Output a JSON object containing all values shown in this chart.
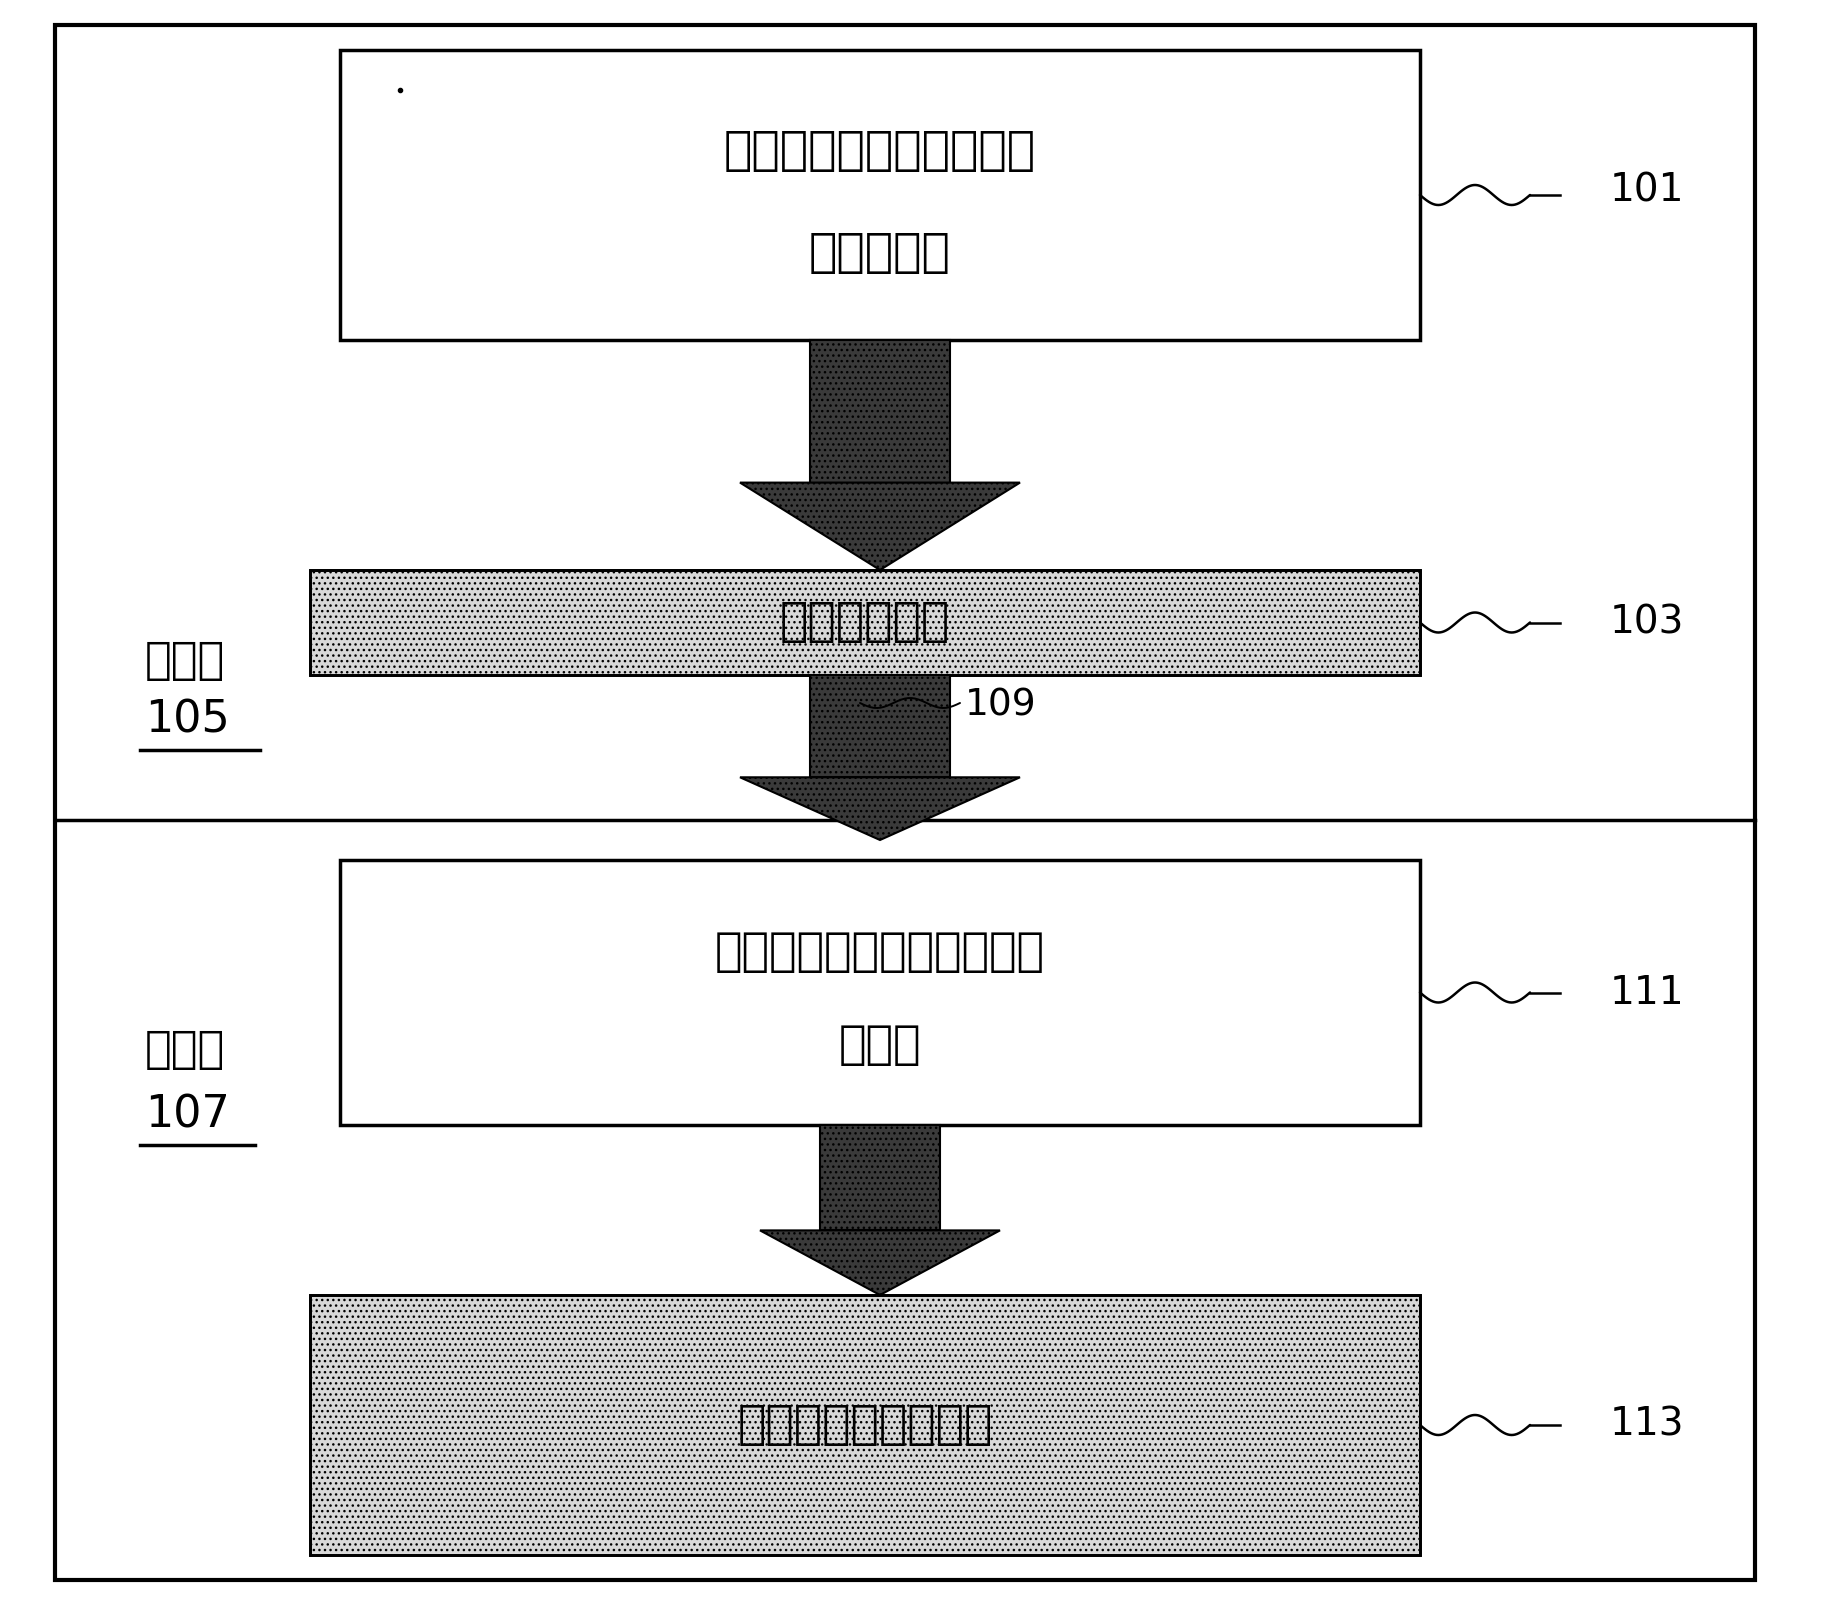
{
  "fig_width": 18.28,
  "fig_height": 16.03,
  "bg_color": "#ffffff",
  "design_room_label": "设计室",
  "design_room_num": "105",
  "fab_label": "制造厂",
  "fab_num": "107",
  "box1_text_line1": "带有多重图案化标记信息",
  "box1_text_line2": "的布局设计",
  "box1_num": "101",
  "box2_text": "设计规则检查",
  "box2_num": "103",
  "box3_text_line1": "利用标记信息分解多重图案",
  "box3_text_line2": "化掩模",
  "box3_num": "111",
  "box4_text": "多重图案化工艺制造",
  "box4_num": "113",
  "arrow_num": "109",
  "text_color": "#000000",
  "arrow_dark": "#3a3a3a",
  "dot_bg": "#d8d8d8"
}
